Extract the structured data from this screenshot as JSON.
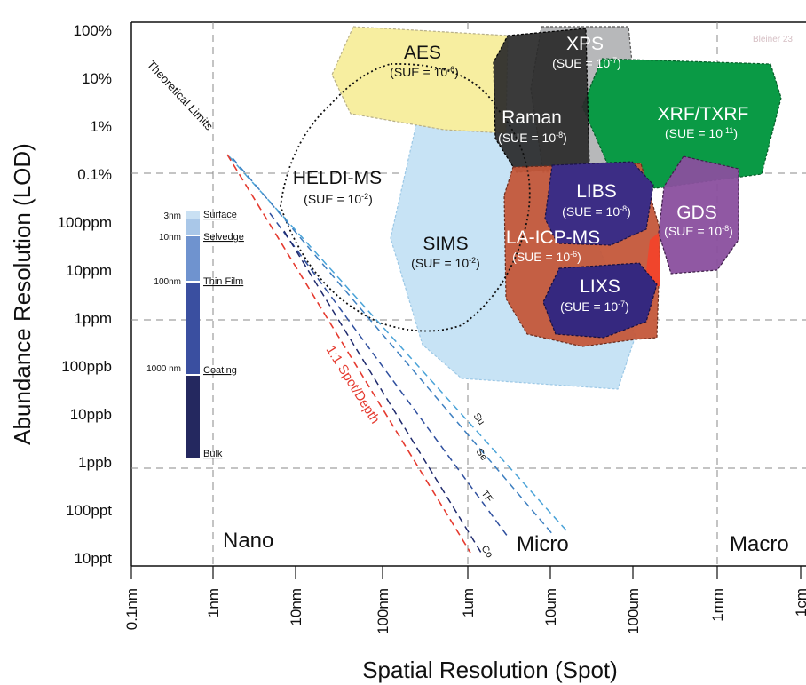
{
  "credit": "Bleiner 23",
  "axes": {
    "x_title": "Spatial Resolution (Spot)",
    "y_title": "Abundance Resolution (LOD)",
    "x_ticks": [
      "0.1nm",
      "1nm",
      "10nm",
      "100nm",
      "1um",
      "10um",
      "100um",
      "1mm",
      "1cm"
    ],
    "y_ticks": [
      "100%",
      "10%",
      "1%",
      "0.1%",
      "100ppm",
      "10ppm",
      "1ppm",
      "100ppb",
      "10ppb",
      "1ppb",
      "100ppt",
      "10ppt"
    ]
  },
  "scale_labels": {
    "nano": "Nano",
    "micro": "Micro",
    "macro": "Macro"
  },
  "regions": [
    {
      "id": "aes",
      "name": "AES",
      "sue_prefix": "(SUE = 10",
      "sue_exp": "-6",
      "sue_suffix": ")",
      "color": "#f7eea0"
    },
    {
      "id": "xps",
      "name": "XPS",
      "sue_prefix": "(SUE = 10",
      "sue_exp": "-7",
      "sue_suffix": ")",
      "color": "#b7b8ba"
    },
    {
      "id": "raman",
      "name": "Raman",
      "sue_prefix": "(SUE = 10",
      "sue_exp": "-8",
      "sue_suffix": ")",
      "color": "#2b2b2b"
    },
    {
      "id": "xrf",
      "name": "XRF/TXRF",
      "sue_prefix": "(SUE = 10",
      "sue_exp": "-11",
      "sue_suffix": ")",
      "color": "#0a9a45"
    },
    {
      "id": "heldi",
      "name": "HELDI-MS",
      "sue_prefix": "(SUE = 10",
      "sue_exp": "-2",
      "sue_suffix": ")",
      "color": "none"
    },
    {
      "id": "sims",
      "name": "SIMS",
      "sue_prefix": "(SUE = 10",
      "sue_exp": "-2",
      "sue_suffix": ")",
      "color": "#c7e3f5"
    },
    {
      "id": "laicp",
      "name": "LA-ICP-MS",
      "sue_prefix": "(SUE = 10",
      "sue_exp": "-6",
      "sue_suffix": ")",
      "color": "#c4573a"
    },
    {
      "id": "libs",
      "name": "LIBS",
      "sue_prefix": "(SUE = 10",
      "sue_exp": "-8",
      "sue_suffix": ")",
      "color": "#3c2d85"
    },
    {
      "id": "gds",
      "name": "GDS",
      "sue_prefix": "(SUE = 10",
      "sue_exp": "-8",
      "sue_suffix": ")",
      "color": "#8a4f9e"
    },
    {
      "id": "lixs",
      "name": "LIXS",
      "sue_prefix": "(SUE = 10",
      "sue_exp": "-7",
      "sue_suffix": ")",
      "color": "#35287f"
    }
  ],
  "lines": {
    "theoretical_limits": "Theoretical Limits",
    "spot_depth": "1:1 Spot/Depth",
    "series": [
      {
        "label": "Su",
        "color": "#4aa3d8"
      },
      {
        "label": "Se",
        "color": "#3d7fc0"
      },
      {
        "label": "TF",
        "color": "#2f4f9e"
      },
      {
        "label": "Co",
        "color": "#1f2a6d"
      }
    ]
  },
  "depth_bar": {
    "sizes": [
      "3nm",
      "10nm",
      "100nm",
      "1000 nm"
    ],
    "layers": [
      "Surface",
      "Selvedge",
      "Thin Film",
      "Coating",
      "Bulk"
    ],
    "layer_colors": [
      "#c9e0f3",
      "#a9c7e8",
      "#6f93cf",
      "#3a4fa0",
      "#24285f"
    ]
  }
}
